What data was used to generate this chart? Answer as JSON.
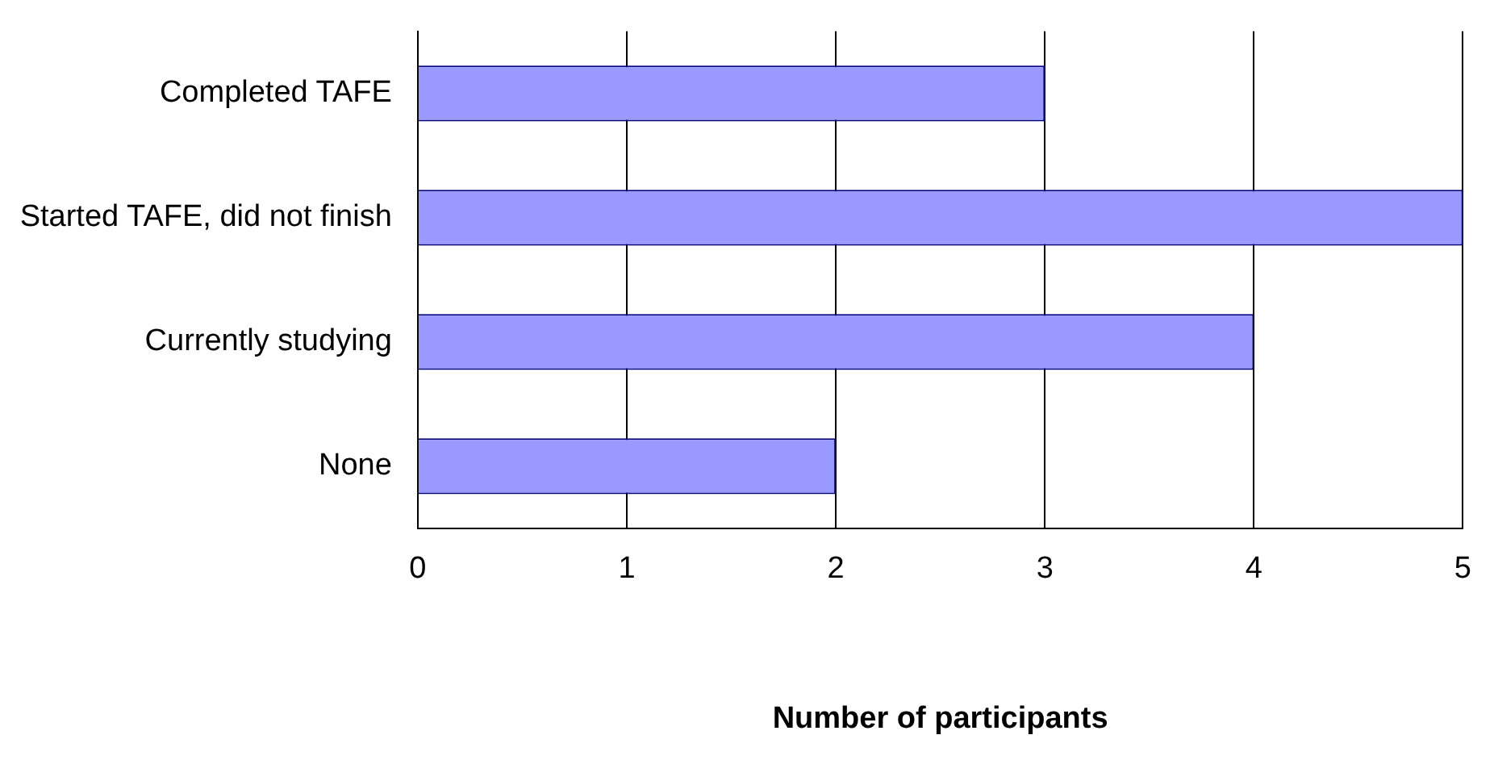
{
  "chart_data": {
    "type": "bar",
    "orientation": "horizontal",
    "xlabel": "Number of participants",
    "categories": [
      "Completed TAFE",
      "Started TAFE, did not finish",
      "Currently studying",
      "None"
    ],
    "values": [
      3,
      5,
      4,
      2
    ],
    "color": "#9999ff",
    "xlim": [
      0,
      5
    ],
    "xticks": [
      0,
      1,
      2,
      3,
      4,
      5
    ],
    "grid": "x",
    "legend": false
  }
}
